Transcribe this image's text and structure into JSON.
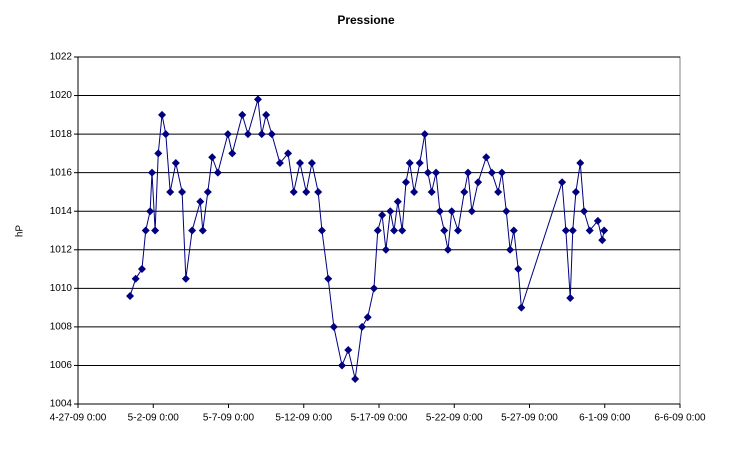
{
  "chart_data": {
    "type": "line",
    "title": "Pressione",
    "y_label": "hP",
    "xlim": [
      "4-27-09 0:00",
      "6-6-09 0:00"
    ],
    "xticks": [
      "4-27-09 0:00",
      "5-2-09 0:00",
      "5-7-09 0:00",
      "5-12-09 0:00",
      "5-17-09 0:00",
      "5-22-09 0:00",
      "5-27-09 0:00",
      "6-1-09 0:00",
      "6-6-09 0:00"
    ],
    "ylim": [
      1004,
      1022
    ],
    "yticks": [
      1004,
      1006,
      1008,
      1010,
      1012,
      1014,
      1016,
      1018,
      1020,
      1022
    ],
    "grid": true,
    "x": [
      "4-30-09 11:00",
      "4-30-09 20:00",
      "5-1-09 6:00",
      "5-1-09 12:00",
      "5-1-09 19:00",
      "5-1-09 22:00",
      "5-2-09 3:00",
      "5-2-09 8:00",
      "5-2-09 14:00",
      "5-2-09 20:00",
      "5-3-09 3:00",
      "5-3-09 12:00",
      "5-3-09 22:00",
      "5-4-09 4:00",
      "5-4-09 14:00",
      "5-5-09 3:00",
      "5-5-09 7:00",
      "5-5-09 15:00",
      "5-5-09 22:00",
      "5-6-09 7:00",
      "5-6-09 23:00",
      "5-7-09 6:00",
      "5-7-09 22:00",
      "5-8-09 7:00",
      "5-8-09 23:00",
      "5-9-09 5:00",
      "5-9-09 12:00",
      "5-9-09 21:00",
      "5-10-09 10:00",
      "5-10-09 23:00",
      "5-11-09 8:00",
      "5-11-09 18:00",
      "5-12-09 4:00",
      "5-12-09 13:00",
      "5-12-09 23:00",
      "5-13-09 5:00",
      "5-13-09 15:00",
      "5-14-09 0:00",
      "5-14-09 13:00",
      "5-14-09 23:00",
      "5-15-09 10:00",
      "5-15-09 21:00",
      "5-16-09 6:00",
      "5-16-09 16:00",
      "5-16-09 22:00",
      "5-17-09 5:00",
      "5-17-09 11:00",
      "5-17-09 18:00",
      "5-18-09 0:00",
      "5-18-09 6:00",
      "5-18-09 13:00",
      "5-18-09 19:00",
      "5-19-09 1:00",
      "5-19-09 8:00",
      "5-19-09 17:00",
      "5-20-09 1:00",
      "5-20-09 6:00",
      "5-20-09 12:00",
      "5-20-09 19:00",
      "5-21-09 1:00",
      "5-21-09 8:00",
      "5-21-09 14:00",
      "5-21-09 20:00",
      "5-22-09 6:00",
      "5-22-09 16:00",
      "5-22-09 22:00",
      "5-23-09 4:00",
      "5-23-09 14:00",
      "5-24-09 3:00",
      "5-24-09 12:00",
      "5-24-09 22:00",
      "5-25-09 4:00",
      "5-25-09 11:00",
      "5-25-09 17:00",
      "5-25-09 23:00",
      "5-26-09 6:00",
      "5-26-09 11:00",
      "5-29-09 4:00",
      "5-29-09 10:00",
      "5-29-09 17:00",
      "5-29-09 21:00",
      "5-30-09 2:00",
      "5-30-09 9:00",
      "5-30-09 15:00",
      "5-31-09 0:00",
      "5-31-09 13:00",
      "5-31-09 20:00",
      "5-31-09 23:00"
    ],
    "series": [
      {
        "color": "#000080",
        "values": [
          1009.6,
          1010.5,
          1011,
          1013,
          1014,
          1016,
          1013,
          1017,
          1019,
          1018,
          1015,
          1016.5,
          1015,
          1010.5,
          1013,
          1014.5,
          1013,
          1015,
          1016.8,
          1016,
          1018,
          1017,
          1019,
          1018,
          1019.8,
          1018,
          1019,
          1018,
          1016.5,
          1017,
          1015,
          1016.5,
          1015,
          1016.5,
          1015,
          1013,
          1010.5,
          1008,
          1006,
          1006.8,
          1005.3,
          1008,
          1008.5,
          1010,
          1013,
          1013.8,
          1012,
          1014,
          1013,
          1014.5,
          1013,
          1015.5,
          1016.5,
          1015,
          1016.5,
          1018,
          1016,
          1015,
          1016,
          1014,
          1013,
          1012,
          1014,
          1013,
          1015,
          1016,
          1014,
          1015.5,
          1016.8,
          1016,
          1015,
          1016,
          1014,
          1012,
          1013,
          1011,
          1009,
          1015.5,
          1013,
          1009.5,
          1013,
          1015,
          1016.5,
          1014,
          1013,
          1013.5,
          1012.5,
          1013
        ]
      }
    ]
  }
}
